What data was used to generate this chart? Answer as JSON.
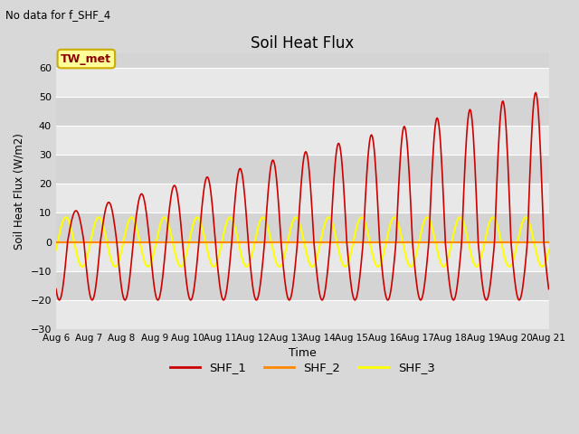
{
  "title": "Soil Heat Flux",
  "subtitle": "No data for f_SHF_4",
  "ylabel": "Soil Heat Flux (W/m2)",
  "xlabel": "Time",
  "ylim": [
    -30,
    65
  ],
  "yticks": [
    -30,
    -20,
    -10,
    0,
    10,
    20,
    30,
    40,
    50,
    60
  ],
  "xtick_labels": [
    "Aug 6",
    "Aug 7",
    "Aug 8",
    "Aug 9",
    "Aug 10",
    "Aug 11",
    "Aug 12",
    "Aug 13",
    "Aug 14",
    "Aug 15",
    "Aug 16",
    "Aug 17",
    "Aug 18",
    "Aug 19",
    "Aug 20",
    "Aug 21"
  ],
  "background_color": "#d8d8d8",
  "plot_bg_light": "#e8e8e8",
  "plot_bg_dark": "#d4d4d4",
  "grid_color": "#ffffff",
  "shf1_color": "#cc0000",
  "shf2_color": "#ff8800",
  "shf3_color": "#ffff00",
  "legend_box_color": "#ffff99",
  "legend_box_border": "#ccaa00",
  "tw_met_text_color": "#8b0000",
  "n_days": 15
}
